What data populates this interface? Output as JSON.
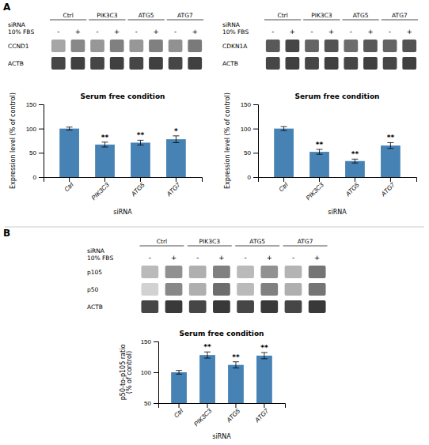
{
  "chart_data": [
    {
      "type": "heatmap",
      "panel_label": "A",
      "header_labels": [
        "siRNA",
        "10% FBS"
      ],
      "groups": [
        "Ctrl",
        "PIK3C3",
        "ATG5",
        "ATG7"
      ],
      "categories": [
        "-",
        "+",
        "-",
        "+",
        "-",
        "+",
        "-",
        "+"
      ],
      "row_labels": [
        "CCND1",
        "ACTB"
      ],
      "values": [
        [
          0.45,
          0.55,
          0.5,
          0.58,
          0.5,
          0.58,
          0.52,
          0.6
        ],
        [
          0.78,
          0.8,
          0.78,
          0.8,
          0.78,
          0.8,
          0.78,
          0.8
        ]
      ],
      "zlim": [
        0,
        1
      ]
    },
    {
      "type": "bar",
      "title": "Serum free condition",
      "xlabel": "siRNA",
      "ylabel": "Expression level (% of control)",
      "categories": [
        "Ctrl",
        "PIK3C3",
        "ATG5",
        "ATG7"
      ],
      "values": [
        100,
        67,
        71,
        78
      ],
      "errors": [
        3,
        5,
        5,
        7
      ],
      "significance": [
        null,
        "**",
        "**",
        "*"
      ],
      "color": "#4682b4",
      "ylim": [
        0,
        150
      ],
      "yticks": [
        0,
        50,
        100,
        150
      ]
    },
    {
      "type": "heatmap",
      "header_labels": [
        "siRNA",
        "10% FBS"
      ],
      "groups": [
        "Ctrl",
        "PIK3C3",
        "ATG5",
        "ATG7"
      ],
      "categories": [
        "-",
        "+",
        "-",
        "+",
        "-",
        "+",
        "-",
        "+"
      ],
      "row_labels": [
        "CDKN1A",
        "ACTB"
      ],
      "values": [
        [
          0.72,
          0.78,
          0.68,
          0.74,
          0.65,
          0.72,
          0.68,
          0.74
        ],
        [
          0.78,
          0.8,
          0.78,
          0.8,
          0.78,
          0.8,
          0.78,
          0.8
        ]
      ],
      "zlim": [
        0,
        1
      ]
    },
    {
      "type": "bar",
      "title": "Serum free condition",
      "xlabel": "siRNA",
      "ylabel": "Expression level (% of control)",
      "categories": [
        "Ctrl",
        "PIK3C3",
        "ATG5",
        "ATG7"
      ],
      "values": [
        100,
        52,
        33,
        65
      ],
      "errors": [
        4,
        5,
        4,
        6
      ],
      "significance": [
        null,
        "**",
        "**",
        "**"
      ],
      "color": "#4682b4",
      "ylim": [
        0,
        150
      ],
      "yticks": [
        0,
        50,
        100,
        150
      ]
    },
    {
      "type": "heatmap",
      "panel_label": "B",
      "header_labels": [
        "siRNA",
        "10% FBS"
      ],
      "groups": [
        "Ctrl",
        "PIK3C3",
        "ATG5",
        "ATG7"
      ],
      "categories": [
        "-",
        "+",
        "-",
        "+",
        "-",
        "+",
        "-",
        "+"
      ],
      "row_labels": [
        "p105",
        "p50",
        "ACTB"
      ],
      "values": [
        [
          0.38,
          0.52,
          0.42,
          0.58,
          0.38,
          0.52,
          0.4,
          0.62
        ],
        [
          0.28,
          0.55,
          0.42,
          0.65,
          0.38,
          0.58,
          0.42,
          0.62
        ],
        [
          0.78,
          0.82,
          0.78,
          0.82,
          0.78,
          0.82,
          0.78,
          0.82
        ]
      ],
      "zlim": [
        0,
        1
      ]
    },
    {
      "type": "bar",
      "title": "Serum free condition",
      "xlabel": "siRNA",
      "ylabel": "p50-to-p105 ratio\n(% of control)",
      "categories": [
        "Ctrl",
        "PIK3C3",
        "ATG5",
        "ATG7"
      ],
      "values": [
        100,
        128,
        112,
        127
      ],
      "errors": [
        3,
        5,
        5,
        5
      ],
      "significance": [
        null,
        "**",
        "**",
        "**"
      ],
      "color": "#4682b4",
      "ylim": [
        50,
        150
      ],
      "yticks": [
        50,
        100,
        150
      ]
    }
  ]
}
